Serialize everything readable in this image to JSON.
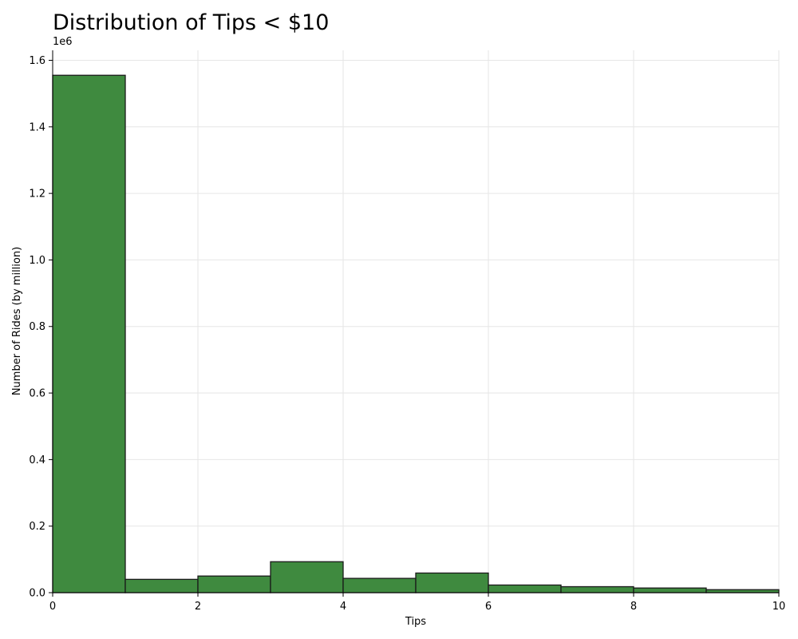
{
  "chart_data": {
    "type": "bar",
    "title": "Distribution of Tips < $10",
    "xlabel": "Tips",
    "ylabel": "Number of Rides (by million)",
    "y_offset_label": "1e6",
    "bins": [
      {
        "x0": 0,
        "x1": 1,
        "value": 1555000
      },
      {
        "x0": 1,
        "x1": 2,
        "value": 40000
      },
      {
        "x0": 2,
        "x1": 3,
        "value": 50000
      },
      {
        "x0": 3,
        "x1": 4,
        "value": 93000
      },
      {
        "x0": 4,
        "x1": 5,
        "value": 43000
      },
      {
        "x0": 5,
        "x1": 6,
        "value": 59000
      },
      {
        "x0": 6,
        "x1": 7,
        "value": 23000
      },
      {
        "x0": 7,
        "x1": 8,
        "value": 18000
      },
      {
        "x0": 8,
        "x1": 9,
        "value": 14000
      },
      {
        "x0": 9,
        "x1": 10,
        "value": 9000
      }
    ],
    "xlim": [
      0,
      10
    ],
    "ylim": [
      0,
      1630000
    ],
    "x_ticks": [
      0,
      2,
      4,
      6,
      8,
      10
    ],
    "x_tick_labels": [
      "0",
      "2",
      "4",
      "6",
      "8",
      "10"
    ],
    "y_ticks": [
      0,
      200000,
      400000,
      600000,
      800000,
      1000000,
      1200000,
      1400000,
      1600000
    ],
    "y_tick_labels": [
      "0.0",
      "0.2",
      "0.4",
      "0.6",
      "0.8",
      "1.0",
      "1.2",
      "1.4",
      "1.6"
    ],
    "grid": true,
    "colors": {
      "bar_fill": "#3f8a3f",
      "bar_edge": "#1a1a1a",
      "grid": "#e6e6e6"
    }
  }
}
